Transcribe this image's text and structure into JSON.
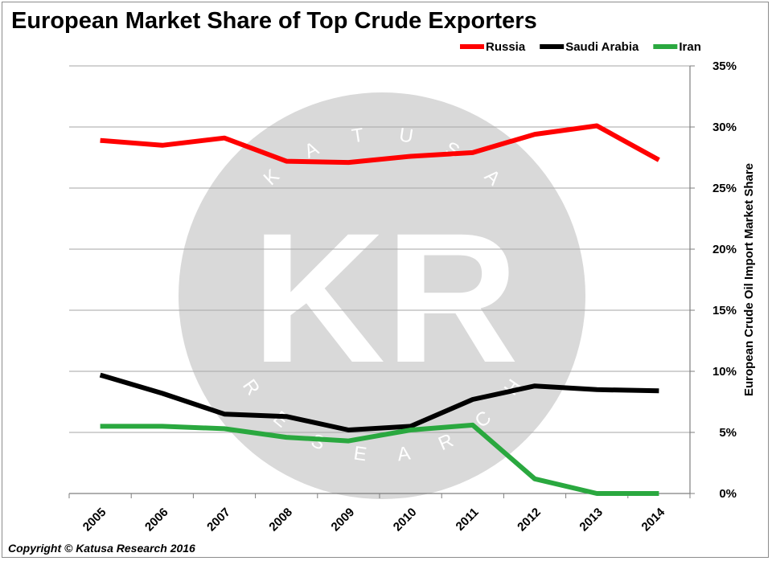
{
  "chart_data": {
    "type": "line",
    "title": "European Market Share of Top Crude Exporters",
    "xlabel": "",
    "ylabel": "European Crude Oil Import Market Share",
    "x": [
      "2005",
      "2006",
      "2007",
      "2008",
      "2009",
      "2010",
      "2011",
      "2012",
      "2013",
      "2014"
    ],
    "series": [
      {
        "name": "Russia",
        "color": "#ff0000",
        "values": [
          28.9,
          28.5,
          29.1,
          27.2,
          27.1,
          27.6,
          27.9,
          29.4,
          30.1,
          27.3
        ]
      },
      {
        "name": "Saudi Arabia",
        "color": "#000000",
        "values": [
          9.7,
          8.2,
          6.5,
          6.3,
          5.2,
          5.5,
          7.7,
          8.8,
          8.5,
          8.4
        ]
      },
      {
        "name": "Iran",
        "color": "#2aa83f",
        "values": [
          5.5,
          5.5,
          5.3,
          4.6,
          4.3,
          5.2,
          5.6,
          1.2,
          0.0,
          0.0
        ]
      }
    ],
    "ylim": [
      0,
      35
    ],
    "yticks": [
      0,
      5,
      10,
      15,
      20,
      25,
      30,
      35
    ],
    "ytick_labels": [
      "0%",
      "5%",
      "10%",
      "15%",
      "20%",
      "25%",
      "30%",
      "35%"
    ],
    "y_axis_side": "right",
    "grid": true,
    "legend_position": "top-right"
  },
  "copyright": "Copyright © Katusa Research 2016",
  "watermark": {
    "monogram": "KR",
    "top_text": "KATUSA",
    "bottom_text": "RESEARCH",
    "circle_color": "#d9d9d9"
  }
}
